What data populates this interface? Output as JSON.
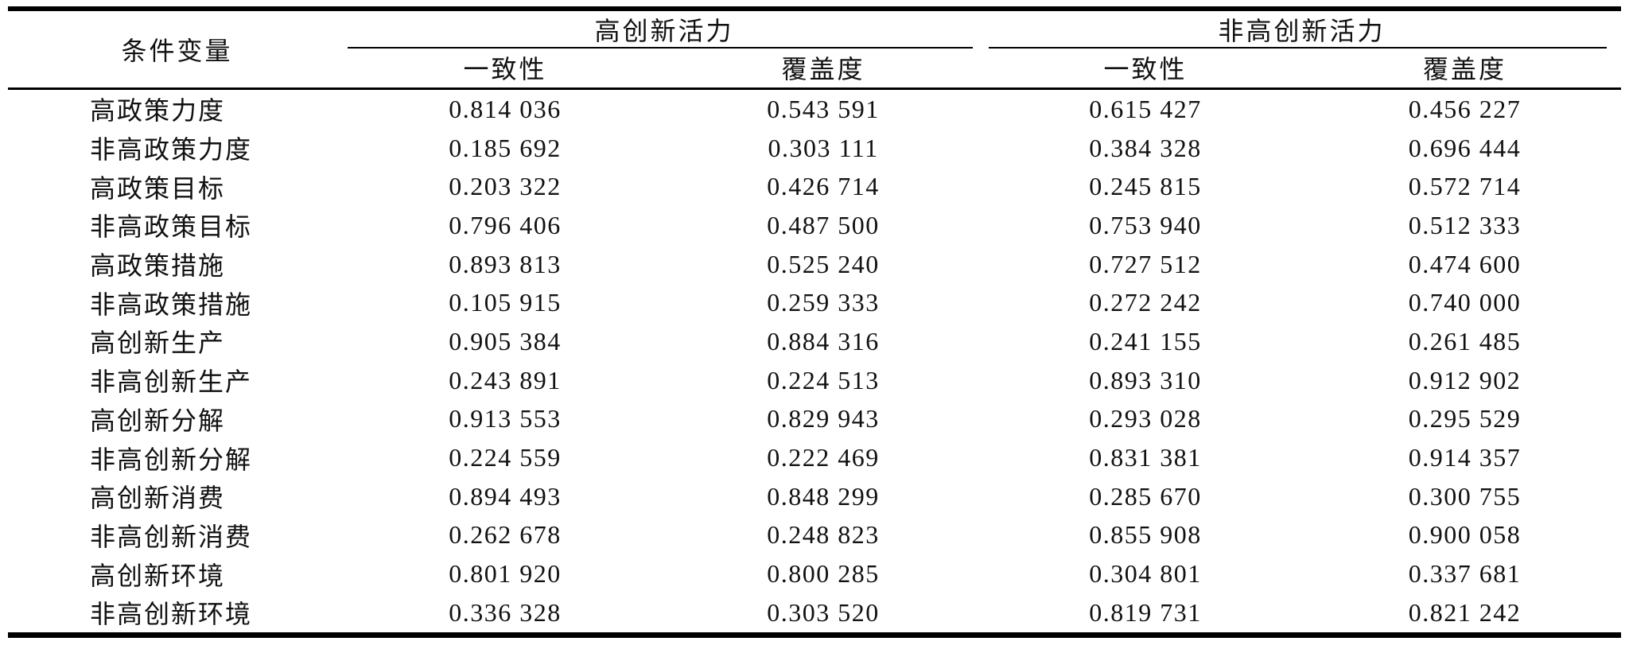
{
  "table": {
    "header": {
      "condition_label": "条件变量",
      "group1": "高创新活力",
      "group2": "非高创新活力",
      "consistency": "一致性",
      "coverage": "覆盖度"
    },
    "rows": [
      {
        "label": "高政策力度",
        "g1_consistency": "0.814 036",
        "g1_coverage": "0.543 591",
        "g2_consistency": "0.615 427",
        "g2_coverage": "0.456 227"
      },
      {
        "label": "非高政策力度",
        "g1_consistency": "0.185 692",
        "g1_coverage": "0.303 111",
        "g2_consistency": "0.384 328",
        "g2_coverage": "0.696 444"
      },
      {
        "label": "高政策目标",
        "g1_consistency": "0.203 322",
        "g1_coverage": "0.426 714",
        "g2_consistency": "0.245 815",
        "g2_coverage": "0.572 714"
      },
      {
        "label": "非高政策目标",
        "g1_consistency": "0.796 406",
        "g1_coverage": "0.487 500",
        "g2_consistency": "0.753 940",
        "g2_coverage": "0.512 333"
      },
      {
        "label": "高政策措施",
        "g1_consistency": "0.893 813",
        "g1_coverage": "0.525 240",
        "g2_consistency": "0.727 512",
        "g2_coverage": "0.474 600"
      },
      {
        "label": "非高政策措施",
        "g1_consistency": "0.105 915",
        "g1_coverage": "0.259 333",
        "g2_consistency": "0.272 242",
        "g2_coverage": "0.740 000"
      },
      {
        "label": "高创新生产",
        "g1_consistency": "0.905 384",
        "g1_coverage": "0.884 316",
        "g2_consistency": "0.241 155",
        "g2_coverage": "0.261 485"
      },
      {
        "label": "非高创新生产",
        "g1_consistency": "0.243 891",
        "g1_coverage": "0.224 513",
        "g2_consistency": "0.893 310",
        "g2_coverage": "0.912 902"
      },
      {
        "label": "高创新分解",
        "g1_consistency": "0.913 553",
        "g1_coverage": "0.829 943",
        "g2_consistency": "0.293 028",
        "g2_coverage": "0.295 529"
      },
      {
        "label": "非高创新分解",
        "g1_consistency": "0.224 559",
        "g1_coverage": "0.222 469",
        "g2_consistency": "0.831 381",
        "g2_coverage": "0.914 357"
      },
      {
        "label": "高创新消费",
        "g1_consistency": "0.894 493",
        "g1_coverage": "0.848 299",
        "g2_consistency": "0.285 670",
        "g2_coverage": "0.300 755"
      },
      {
        "label": "非高创新消费",
        "g1_consistency": "0.262 678",
        "g1_coverage": "0.248 823",
        "g2_consistency": "0.855 908",
        "g2_coverage": "0.900 058"
      },
      {
        "label": "高创新环境",
        "g1_consistency": "0.801 920",
        "g1_coverage": "0.800 285",
        "g2_consistency": "0.304 801",
        "g2_coverage": "0.337 681"
      },
      {
        "label": "非高创新环境",
        "g1_consistency": "0.336 328",
        "g1_coverage": "0.303 520",
        "g2_consistency": "0.819 731",
        "g2_coverage": "0.821 242"
      }
    ]
  }
}
